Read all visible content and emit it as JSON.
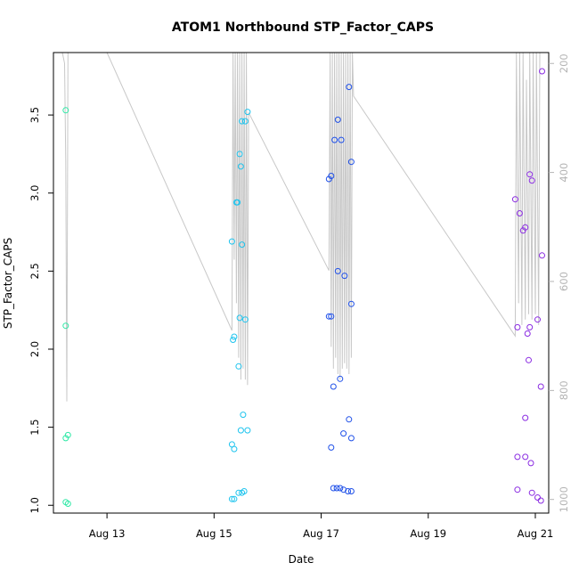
{
  "chart_data": {
    "type": "scatter",
    "title": "ATOM1 Northbound STP_Factor_CAPS",
    "xlabel": "Date",
    "ylabel": "STP_Factor_CAPS",
    "x_ticks": [
      "Aug 13",
      "Aug 15",
      "Aug 17",
      "Aug 19",
      "Aug 21"
    ],
    "xlim": [
      "Aug 12 00:00",
      "Aug 21 06:00"
    ],
    "ylim": [
      0.95,
      3.9
    ],
    "y_ticks": [
      1.0,
      1.5,
      2.0,
      2.5,
      3.0,
      3.5
    ],
    "y2_ticks": [
      200,
      400,
      600,
      800,
      1000
    ],
    "y2lim": [
      1025,
      180
    ],
    "grid": false,
    "point_style": "open circle",
    "series": [
      {
        "color": "#2fe8a6",
        "points": [
          {
            "x": "Aug 12 05:30",
            "y": 3.53
          },
          {
            "x": "Aug 12 05:30",
            "y": 2.15
          },
          {
            "x": "Aug 12 05:30",
            "y": 1.43
          },
          {
            "x": "Aug 12 06:30",
            "y": 1.45
          },
          {
            "x": "Aug 12 05:30",
            "y": 1.02
          },
          {
            "x": "Aug 12 06:30",
            "y": 1.01
          }
        ]
      },
      {
        "color": "#1fc4ee",
        "points": [
          {
            "x": "Aug 15 08:00",
            "y": 2.69
          },
          {
            "x": "Aug 15 08:30",
            "y": 2.06
          },
          {
            "x": "Aug 15 09:00",
            "y": 2.08
          },
          {
            "x": "Aug 15 10:00",
            "y": 2.94
          },
          {
            "x": "Aug 15 10:30",
            "y": 2.94
          },
          {
            "x": "Aug 15 11:00",
            "y": 1.89
          },
          {
            "x": "Aug 15 11:30",
            "y": 2.2
          },
          {
            "x": "Aug 15 11:30",
            "y": 3.25
          },
          {
            "x": "Aug 15 12:00",
            "y": 3.17
          },
          {
            "x": "Aug 15 12:30",
            "y": 2.67
          },
          {
            "x": "Aug 15 12:30",
            "y": 3.46
          },
          {
            "x": "Aug 15 14:00",
            "y": 3.46
          },
          {
            "x": "Aug 15 15:00",
            "y": 3.52
          },
          {
            "x": "Aug 15 14:00",
            "y": 2.19
          },
          {
            "x": "Aug 15 13:00",
            "y": 1.58
          },
          {
            "x": "Aug 15 12:00",
            "y": 1.48
          },
          {
            "x": "Aug 15 15:00",
            "y": 1.48
          },
          {
            "x": "Aug 15 08:00",
            "y": 1.39
          },
          {
            "x": "Aug 15 09:00",
            "y": 1.36
          },
          {
            "x": "Aug 15 08:00",
            "y": 1.04
          },
          {
            "x": "Aug 15 09:00",
            "y": 1.04
          },
          {
            "x": "Aug 15 11:00",
            "y": 1.08
          },
          {
            "x": "Aug 15 12:30",
            "y": 1.08
          },
          {
            "x": "Aug 15 13:30",
            "y": 1.09
          }
        ]
      },
      {
        "color": "#1f50e8",
        "points": [
          {
            "x": "Aug 17 12:30",
            "y": 3.68
          },
          {
            "x": "Aug 17 07:30",
            "y": 3.47
          },
          {
            "x": "Aug 17 06:00",
            "y": 3.34
          },
          {
            "x": "Aug 17 09:00",
            "y": 3.34
          },
          {
            "x": "Aug 17 13:30",
            "y": 3.2
          },
          {
            "x": "Aug 17 04:30",
            "y": 3.11
          },
          {
            "x": "Aug 17 03:30",
            "y": 3.09
          },
          {
            "x": "Aug 17 07:30",
            "y": 2.5
          },
          {
            "x": "Aug 17 10:30",
            "y": 2.47
          },
          {
            "x": "Aug 17 13:30",
            "y": 2.29
          },
          {
            "x": "Aug 17 03:30",
            "y": 2.21
          },
          {
            "x": "Aug 17 04:30",
            "y": 2.21
          },
          {
            "x": "Aug 17 08:30",
            "y": 1.81
          },
          {
            "x": "Aug 17 05:30",
            "y": 1.76
          },
          {
            "x": "Aug 17 12:30",
            "y": 1.55
          },
          {
            "x": "Aug 17 10:00",
            "y": 1.46
          },
          {
            "x": "Aug 17 13:30",
            "y": 1.43
          },
          {
            "x": "Aug 17 04:30",
            "y": 1.37
          },
          {
            "x": "Aug 17 05:30",
            "y": 1.11
          },
          {
            "x": "Aug 17 07:00",
            "y": 1.11
          },
          {
            "x": "Aug 17 08:30",
            "y": 1.11
          },
          {
            "x": "Aug 17 10:00",
            "y": 1.1
          },
          {
            "x": "Aug 17 12:00",
            "y": 1.09
          },
          {
            "x": "Aug 17 13:30",
            "y": 1.09
          }
        ]
      },
      {
        "color": "#8a2be2",
        "points": [
          {
            "x": "Aug 21 03:00",
            "y": 3.78
          },
          {
            "x": "Aug 20 21:30",
            "y": 3.12
          },
          {
            "x": "Aug 20 22:30",
            "y": 3.08
          },
          {
            "x": "Aug 20 15:00",
            "y": 2.96
          },
          {
            "x": "Aug 20 17:00",
            "y": 2.87
          },
          {
            "x": "Aug 20 19:30",
            "y": 2.78
          },
          {
            "x": "Aug 20 18:30",
            "y": 2.76
          },
          {
            "x": "Aug 21 03:00",
            "y": 2.6
          },
          {
            "x": "Aug 20 16:00",
            "y": 2.14
          },
          {
            "x": "Aug 20 21:30",
            "y": 2.14
          },
          {
            "x": "Aug 21 01:00",
            "y": 2.19
          },
          {
            "x": "Aug 20 20:30",
            "y": 2.1
          },
          {
            "x": "Aug 20 21:00",
            "y": 1.93
          },
          {
            "x": "Aug 21 02:30",
            "y": 1.76
          },
          {
            "x": "Aug 20 19:30",
            "y": 1.56
          },
          {
            "x": "Aug 20 16:00",
            "y": 1.31
          },
          {
            "x": "Aug 20 19:30",
            "y": 1.31
          },
          {
            "x": "Aug 20 22:00",
            "y": 1.27
          },
          {
            "x": "Aug 20 16:00",
            "y": 1.1
          },
          {
            "x": "Aug 20 22:30",
            "y": 1.08
          },
          {
            "x": "Aug 21 01:00",
            "y": 1.05
          },
          {
            "x": "Aug 21 02:30",
            "y": 1.03
          }
        ]
      }
    ],
    "overlay": {
      "color": "#c8c8c8",
      "axis": "right",
      "points": [
        [
          "Aug 12 04:00",
          180
        ],
        [
          "Aug 12 05:00",
          200
        ],
        [
          "Aug 12 05:30",
          380
        ],
        [
          "Aug 12 06:00",
          820
        ],
        [
          "Aug 12 06:30",
          180
        ],
        [
          "Aug 12 07:30",
          180
        ],
        [
          "Aug 12 09:00",
          180
        ],
        [
          "Aug 13 00:00",
          180
        ],
        [
          "Aug 15 08:00",
          690
        ],
        [
          "Aug 15 08:30",
          180
        ],
        [
          "Aug 15 09:00",
          560
        ],
        [
          "Aug 15 09:30",
          180
        ],
        [
          "Aug 15 10:00",
          640
        ],
        [
          "Aug 15 10:30",
          180
        ],
        [
          "Aug 15 11:00",
          740
        ],
        [
          "Aug 15 11:30",
          180
        ],
        [
          "Aug 15 12:00",
          780
        ],
        [
          "Aug 15 12:30",
          180
        ],
        [
          "Aug 15 13:00",
          760
        ],
        [
          "Aug 15 13:30",
          180
        ],
        [
          "Aug 15 14:00",
          780
        ],
        [
          "Aug 15 14:30",
          180
        ],
        [
          "Aug 15 15:00",
          790
        ],
        [
          "Aug 15 15:30",
          290
        ],
        [
          "Aug 17 03:30",
          580
        ],
        [
          "Aug 17 04:00",
          180
        ],
        [
          "Aug 17 04:30",
          720
        ],
        [
          "Aug 17 05:00",
          180
        ],
        [
          "Aug 17 05:30",
          760
        ],
        [
          "Aug 17 06:00",
          180
        ],
        [
          "Aug 17 06:30",
          740
        ],
        [
          "Aug 17 07:00",
          180
        ],
        [
          "Aug 17 07:30",
          770
        ],
        [
          "Aug 17 08:00",
          180
        ],
        [
          "Aug 17 08:30",
          780
        ],
        [
          "Aug 17 09:00",
          180
        ],
        [
          "Aug 17 09:30",
          760
        ],
        [
          "Aug 17 10:00",
          180
        ],
        [
          "Aug 17 10:30",
          750
        ],
        [
          "Aug 17 11:00",
          180
        ],
        [
          "Aug 17 11:30",
          760
        ],
        [
          "Aug 17 12:00",
          180
        ],
        [
          "Aug 17 12:30",
          770
        ],
        [
          "Aug 17 13:00",
          180
        ],
        [
          "Aug 17 13:30",
          740
        ],
        [
          "Aug 17 14:00",
          180
        ],
        [
          "Aug 17 14:30",
          260
        ],
        [
          "Aug 20 15:00",
          700
        ],
        [
          "Aug 20 15:30",
          180
        ],
        [
          "Aug 20 16:30",
          640
        ],
        [
          "Aug 20 17:00",
          180
        ],
        [
          "Aug 20 18:00",
          680
        ],
        [
          "Aug 20 18:30",
          180
        ],
        [
          "Aug 20 19:30",
          670
        ],
        [
          "Aug 20 20:00",
          230
        ],
        [
          "Aug 20 21:00",
          660
        ],
        [
          "Aug 20 21:30",
          180
        ],
        [
          "Aug 20 22:30",
          670
        ],
        [
          "Aug 20 23:00",
          180
        ],
        [
          "Aug 21 00:00",
          660
        ],
        [
          "Aug 21 00:30",
          180
        ],
        [
          "Aug 21 01:30",
          680
        ],
        [
          "Aug 21 02:00",
          180
        ],
        [
          "Aug 21 03:00",
          180
        ],
        [
          "Aug 21 04:00",
          180
        ]
      ]
    }
  }
}
